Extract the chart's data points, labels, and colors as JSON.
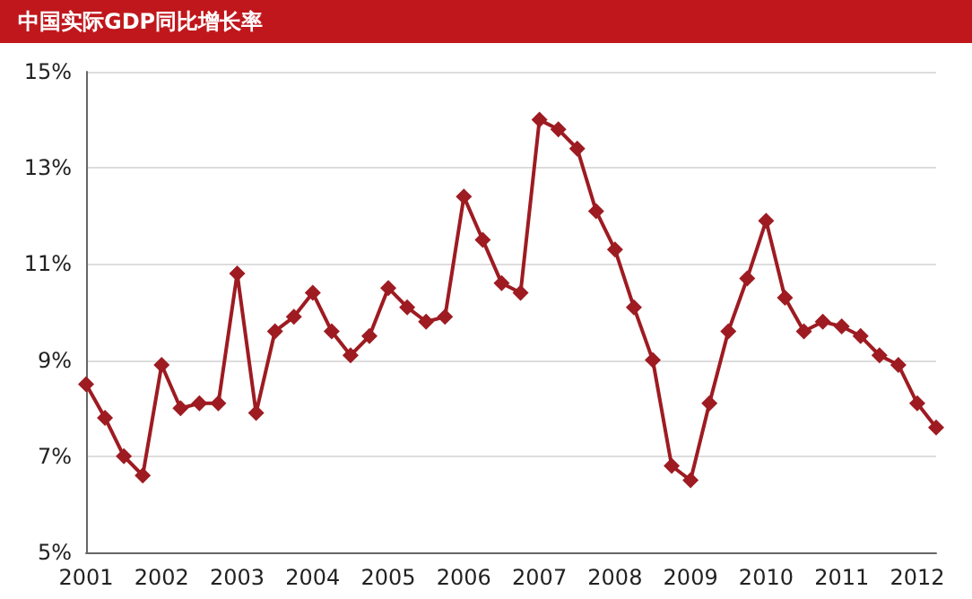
{
  "chart_data": {
    "type": "line",
    "title": "中国实际GDP同比增长率",
    "categories": [
      "2001",
      null,
      null,
      null,
      "2002",
      null,
      null,
      null,
      "2003",
      null,
      null,
      null,
      "2004",
      null,
      null,
      null,
      "2005",
      null,
      null,
      null,
      "2006",
      null,
      null,
      null,
      "2007",
      null,
      null,
      null,
      "2008",
      null,
      null,
      null,
      "2009",
      null,
      null,
      null,
      "2010",
      null,
      null,
      null,
      "2011",
      null,
      null,
      null,
      "2012",
      null
    ],
    "series": [
      {
        "color": "#9e1b22",
        "values": [
          8.5,
          7.8,
          7.0,
          6.6,
          8.9,
          8.0,
          8.1,
          8.1,
          10.8,
          7.9,
          9.6,
          9.9,
          10.4,
          9.6,
          9.1,
          9.5,
          10.5,
          10.1,
          9.8,
          9.9,
          12.4,
          11.5,
          10.6,
          10.4,
          14.0,
          13.8,
          13.4,
          12.1,
          11.3,
          10.1,
          9.0,
          6.8,
          6.5,
          8.1,
          9.6,
          10.7,
          11.9,
          10.3,
          9.6,
          9.8,
          9.7,
          9.5,
          9.1,
          8.9,
          8.1,
          7.6
        ]
      }
    ],
    "ylim": [
      5,
      15
    ],
    "yticks": [
      {
        "value": 5,
        "label": "5%"
      },
      {
        "value": 7,
        "label": "7%"
      },
      {
        "value": 9,
        "label": "9%"
      },
      {
        "value": 11,
        "label": "11%"
      },
      {
        "value": 13,
        "label": "13%"
      },
      {
        "value": 15,
        "label": "15%"
      }
    ],
    "grid": "y",
    "marker": "diamond",
    "line_style": "solid"
  }
}
